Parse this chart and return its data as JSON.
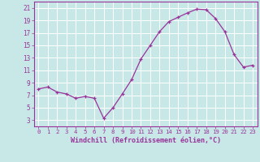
{
  "x": [
    0,
    1,
    2,
    3,
    4,
    5,
    6,
    7,
    8,
    9,
    10,
    11,
    12,
    13,
    14,
    15,
    16,
    17,
    18,
    19,
    20,
    21,
    22,
    23
  ],
  "y": [
    8.0,
    8.3,
    7.5,
    7.2,
    6.5,
    6.8,
    6.5,
    3.3,
    5.0,
    7.2,
    9.5,
    12.8,
    15.0,
    17.2,
    18.8,
    19.5,
    20.2,
    20.8,
    20.7,
    19.3,
    17.2,
    13.5,
    11.5,
    11.8
  ],
  "line_color": "#993399",
  "marker": "+",
  "bg_color": "#c8e8e8",
  "grid_color": "#b0d8d8",
  "xlabel": "Windchill (Refroidissement éolien,°C)",
  "xlabel_color": "#993399",
  "tick_color": "#993399",
  "xlim": [
    -0.5,
    23.5
  ],
  "ylim": [
    2,
    22
  ],
  "yticks": [
    3,
    5,
    7,
    9,
    11,
    13,
    15,
    17,
    19,
    21
  ],
  "xticks": [
    0,
    1,
    2,
    3,
    4,
    5,
    6,
    7,
    8,
    9,
    10,
    11,
    12,
    13,
    14,
    15,
    16,
    17,
    18,
    19,
    20,
    21,
    22,
    23
  ],
  "font_family": "monospace"
}
